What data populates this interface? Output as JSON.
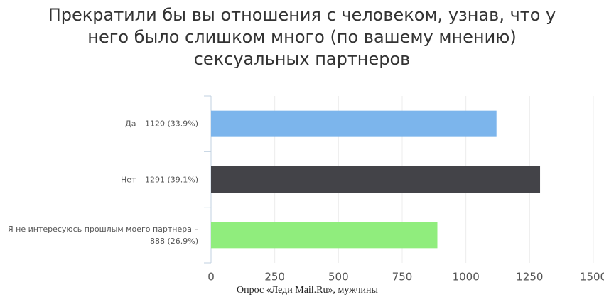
{
  "chart_data": {
    "type": "bar",
    "orientation": "horizontal",
    "title": "Прекратили бы вы отношения с человеком, узнав, что у него было слишком много (по вашему мнению) сексуальных партнеров",
    "categories": [
      "Да – 1120 (33.9%)",
      "Нет – 1291 (39.1%)",
      "Я не интересуюсь прошлым моего партнера – 888 (26.9%)"
    ],
    "values": [
      1120,
      1291,
      888
    ],
    "colors": [
      "#7cb5ec",
      "#434348",
      "#90ed7d"
    ],
    "xlim": [
      0,
      1500
    ],
    "xticks": [
      0,
      250,
      500,
      750,
      1000,
      1250,
      1500
    ],
    "grid": true,
    "source": "Опрос «Леди Mail.Ru», мужчины"
  }
}
